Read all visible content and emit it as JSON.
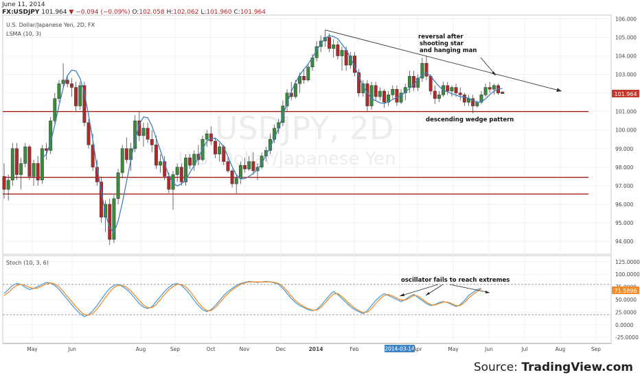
{
  "header": {
    "date": "June 11, 2014",
    "symbol": "FX:USDJPY",
    "last": "101.964",
    "change": "▼ −0.094 (−0.09%)",
    "o_label": "O:",
    "o_val": "102.058",
    "h_label": "H:",
    "h_val": "102.062",
    "l_label": "L:",
    "l_val": "101.960",
    "c_label": "C:",
    "c_val": "101.964"
  },
  "price_pane": {
    "title": "U.S. Dollar/Japanese Yen, 2D, FX",
    "indicator": "LSMA (10, 3)",
    "watermark_symbol": "USDJPY, 2D",
    "watermark_name": "U.S. Dollar/Japanese Yen",
    "last_tag": "101.964",
    "y_min": 93.3,
    "y_max": 106.2,
    "y_ticks": [
      "106.000",
      "105.000",
      "104.000",
      "103.000",
      "102.000",
      "101.000",
      "100.000",
      "99.000",
      "98.000",
      "97.000",
      "96.000",
      "95.000",
      "94.000"
    ],
    "horizontal_levels": [
      101.0,
      97.45,
      96.55
    ],
    "annotations": {
      "reversal": [
        "reversal after",
        "shooting star",
        "and hanging man"
      ],
      "wedge": "descending wedge pattern"
    }
  },
  "stoch_pane": {
    "title": "Stoch (10, 3, 6)",
    "y_min": -37,
    "y_max": 137,
    "y_ticks": [
      "125.0000",
      "100.0000",
      "75.0000",
      "50.0000",
      "25.0000",
      "0.0000",
      "-25.0000"
    ],
    "bands": [
      80,
      20
    ],
    "last_tag": "71.5896",
    "annotation": "oscillator fails to reach extremes",
    "colors": {
      "k": "#4a9fd8",
      "d": "#f28c28"
    }
  },
  "time_axis": {
    "labels": [
      "May",
      "Jun",
      "Jul",
      "Aug",
      "Sep",
      "Oct",
      "Nov",
      "Dec",
      "2014",
      "Feb",
      "2014-03-14",
      "Apr",
      "May",
      "Jun",
      "Jul",
      "Aug",
      "Sep"
    ]
  },
  "source": {
    "prefix": "Source: ",
    "brand": "TradingView.com"
  },
  "chart_data": {
    "type": "candlestick",
    "candle_values": [
      [
        97.5,
        98.2,
        96.3,
        96.8
      ],
      [
        96.8,
        97.6,
        96.2,
        97.3
      ],
      [
        97.3,
        99.3,
        97.0,
        99.0
      ],
      [
        99.0,
        99.3,
        97.3,
        97.6
      ],
      [
        97.6,
        98.5,
        96.8,
        98.2
      ],
      [
        98.2,
        99.3,
        98.0,
        99.1
      ],
      [
        99.1,
        99.2,
        97.3,
        97.5
      ],
      [
        97.5,
        98.4,
        97.0,
        98.2
      ],
      [
        98.2,
        98.6,
        97.0,
        97.3
      ],
      [
        97.3,
        99.2,
        97.1,
        99.0
      ],
      [
        99.0,
        99.3,
        98.4,
        98.9
      ],
      [
        98.9,
        100.7,
        98.7,
        100.5
      ],
      [
        100.5,
        102.0,
        100.3,
        101.7
      ],
      [
        101.7,
        102.7,
        101.5,
        102.5
      ],
      [
        102.5,
        103.6,
        102.3,
        102.7
      ],
      [
        102.7,
        102.9,
        102.3,
        102.5
      ],
      [
        102.5,
        102.8,
        101.8,
        102.3
      ],
      [
        102.3,
        102.6,
        101.0,
        101.3
      ],
      [
        101.3,
        102.6,
        101.1,
        102.4
      ],
      [
        102.4,
        102.6,
        100.2,
        100.4
      ],
      [
        100.4,
        100.6,
        99.0,
        99.2
      ],
      [
        99.2,
        99.8,
        97.8,
        98.0
      ],
      [
        98.0,
        98.4,
        97.0,
        97.2
      ],
      [
        97.2,
        97.5,
        95.0,
        95.3
      ],
      [
        95.3,
        96.2,
        94.5,
        96.0
      ],
      [
        96.0,
        96.3,
        93.8,
        94.1
      ],
      [
        94.1,
        96.5,
        93.9,
        96.3
      ],
      [
        96.3,
        97.9,
        96.0,
        97.7
      ],
      [
        97.7,
        99.2,
        97.4,
        99.0
      ],
      [
        99.0,
        99.6,
        98.2,
        98.4
      ],
      [
        98.4,
        99.3,
        97.8,
        99.0
      ],
      [
        99.0,
        100.8,
        98.8,
        100.5
      ],
      [
        100.5,
        101.0,
        99.4,
        99.7
      ],
      [
        99.7,
        100.4,
        99.1,
        100.1
      ],
      [
        100.1,
        100.4,
        99.3,
        99.5
      ],
      [
        99.5,
        100.0,
        98.8,
        99.2
      ],
      [
        99.2,
        99.7,
        97.9,
        98.1
      ],
      [
        98.1,
        98.7,
        97.7,
        98.3
      ],
      [
        98.3,
        98.6,
        97.3,
        97.5
      ],
      [
        97.5,
        97.7,
        96.6,
        96.8
      ],
      [
        96.8,
        97.8,
        95.7,
        97.6
      ],
      [
        97.6,
        98.2,
        97.2,
        98.0
      ],
      [
        98.0,
        98.2,
        97.0,
        97.2
      ],
      [
        97.2,
        98.7,
        97.0,
        98.5
      ],
      [
        98.5,
        98.7,
        97.9,
        98.1
      ],
      [
        98.1,
        98.9,
        97.8,
        98.7
      ],
      [
        98.7,
        99.2,
        98.1,
        98.4
      ],
      [
        98.4,
        99.7,
        98.3,
        99.5
      ],
      [
        99.5,
        100.0,
        99.1,
        99.8
      ],
      [
        99.8,
        100.2,
        99.2,
        99.4
      ],
      [
        99.4,
        99.6,
        98.5,
        98.7
      ],
      [
        98.7,
        99.3,
        98.3,
        99.1
      ],
      [
        99.1,
        99.2,
        98.1,
        98.3
      ],
      [
        98.3,
        98.6,
        97.7,
        97.8
      ],
      [
        97.8,
        97.9,
        96.9,
        97.1
      ],
      [
        97.1,
        97.6,
        96.6,
        97.4
      ],
      [
        97.4,
        98.3,
        97.1,
        98.1
      ],
      [
        98.1,
        98.5,
        97.7,
        97.9
      ],
      [
        97.9,
        98.6,
        97.8,
        98.3
      ],
      [
        98.3,
        98.8,
        97.6,
        97.8
      ],
      [
        97.8,
        98.2,
        97.3,
        98.0
      ],
      [
        98.0,
        98.8,
        97.9,
        98.6
      ],
      [
        98.6,
        99.1,
        98.3,
        98.9
      ],
      [
        98.9,
        99.8,
        98.7,
        99.5
      ],
      [
        99.5,
        100.3,
        99.3,
        100.1
      ],
      [
        100.1,
        100.6,
        99.8,
        100.4
      ],
      [
        100.4,
        101.6,
        100.2,
        101.3
      ],
      [
        101.3,
        102.2,
        101.0,
        102.0
      ],
      [
        102.0,
        102.6,
        101.6,
        101.8
      ],
      [
        101.8,
        102.7,
        101.7,
        102.5
      ],
      [
        102.5,
        103.1,
        102.0,
        102.9
      ],
      [
        102.9,
        103.3,
        102.5,
        102.7
      ],
      [
        102.7,
        103.6,
        102.6,
        103.4
      ],
      [
        103.4,
        104.1,
        103.2,
        103.9
      ],
      [
        103.9,
        104.8,
        103.7,
        104.5
      ],
      [
        104.5,
        105.1,
        104.2,
        104.8
      ],
      [
        104.8,
        105.4,
        104.5,
        105.0
      ],
      [
        105.0,
        105.2,
        104.2,
        104.4
      ],
      [
        104.4,
        104.9,
        103.9,
        104.6
      ],
      [
        104.6,
        104.8,
        103.8,
        104.0
      ],
      [
        104.0,
        104.5,
        103.2,
        104.3
      ],
      [
        104.3,
        104.5,
        103.2,
        103.5
      ],
      [
        103.5,
        104.2,
        103.3,
        104.0
      ],
      [
        104.0,
        104.2,
        102.9,
        103.1
      ],
      [
        103.1,
        103.3,
        101.8,
        102.0
      ],
      [
        102.0,
        102.7,
        101.8,
        102.5
      ],
      [
        102.5,
        102.7,
        101.0,
        101.3
      ],
      [
        101.3,
        102.6,
        101.1,
        102.4
      ],
      [
        102.4,
        102.6,
        101.6,
        101.8
      ],
      [
        101.8,
        102.3,
        101.6,
        102.1
      ],
      [
        102.1,
        102.2,
        101.2,
        101.5
      ],
      [
        101.5,
        102.1,
        101.3,
        101.9
      ],
      [
        101.9,
        102.4,
        101.7,
        102.2
      ],
      [
        102.2,
        102.4,
        101.3,
        101.5
      ],
      [
        101.5,
        102.2,
        101.4,
        102.0
      ],
      [
        102.0,
        102.5,
        101.6,
        102.3
      ],
      [
        102.3,
        103.2,
        102.0,
        102.9
      ],
      [
        102.9,
        103.2,
        102.1,
        102.3
      ],
      [
        102.3,
        103.0,
        102.1,
        102.8
      ],
      [
        102.8,
        103.9,
        102.6,
        103.6
      ],
      [
        103.6,
        104.0,
        102.7,
        102.9
      ],
      [
        102.9,
        103.0,
        101.9,
        102.1
      ],
      [
        102.1,
        102.4,
        101.4,
        101.7
      ],
      [
        101.7,
        102.1,
        101.5,
        101.9
      ],
      [
        101.9,
        102.6,
        101.8,
        102.4
      ],
      [
        102.4,
        102.6,
        101.9,
        102.1
      ],
      [
        102.1,
        102.4,
        101.8,
        102.3
      ],
      [
        102.3,
        102.5,
        101.8,
        102.0
      ],
      [
        102.0,
        102.3,
        101.6,
        101.9
      ],
      [
        101.9,
        102.0,
        101.3,
        101.5
      ],
      [
        101.5,
        101.9,
        101.3,
        101.7
      ],
      [
        101.7,
        101.9,
        100.9,
        101.3
      ],
      [
        101.3,
        101.6,
        101.2,
        101.5
      ],
      [
        101.5,
        102.1,
        101.4,
        101.9
      ],
      [
        101.9,
        102.5,
        101.8,
        102.3
      ],
      [
        102.3,
        102.6,
        102.0,
        102.2
      ],
      [
        102.2,
        102.5,
        101.9,
        102.4
      ],
      [
        102.4,
        102.5,
        101.9,
        102.0
      ],
      [
        102.058,
        102.062,
        101.96,
        101.964
      ]
    ],
    "lsma_label": "LSMA (10, 3)",
    "trendline": [
      [
        76,
        105.4
      ],
      [
        132,
        102.1
      ]
    ],
    "stoch_k": [
      62,
      70,
      78,
      82,
      80,
      74,
      70,
      72,
      76,
      80,
      84,
      83,
      78,
      70,
      60,
      50,
      40,
      30,
      22,
      16,
      20,
      28,
      38,
      50,
      62,
      72,
      78,
      80,
      76,
      70,
      62,
      52,
      42,
      35,
      32,
      36,
      46,
      56,
      66,
      74,
      80,
      82,
      78,
      70,
      60,
      48,
      38,
      30,
      26,
      30,
      38,
      48,
      58,
      66,
      72,
      78,
      82,
      84,
      86,
      85,
      84,
      85,
      86,
      85,
      83,
      80,
      72,
      62,
      52,
      44,
      38,
      34,
      30,
      28,
      30,
      38,
      48,
      58,
      66,
      60,
      52,
      44,
      36,
      30,
      26,
      22,
      28,
      38,
      48,
      56,
      62,
      58,
      54,
      50,
      46,
      50,
      56,
      60,
      54,
      48,
      42,
      38,
      40,
      44,
      46,
      44,
      40,
      36,
      40,
      48,
      58,
      64,
      70,
      72
    ],
    "stoch_d": [
      58,
      64,
      72,
      78,
      80,
      78,
      74,
      72,
      73,
      77,
      81,
      83,
      81,
      75,
      66,
      56,
      46,
      36,
      27,
      20,
      19,
      23,
      31,
      42,
      54,
      65,
      74,
      78,
      78,
      74,
      67,
      58,
      48,
      39,
      34,
      34,
      40,
      50,
      60,
      69,
      76,
      80,
      80,
      75,
      67,
      55,
      44,
      34,
      28,
      28,
      34,
      43,
      53,
      62,
      69,
      75,
      80,
      83,
      85,
      85,
      85,
      85,
      85,
      85,
      84,
      82,
      76,
      67,
      57,
      48,
      41,
      36,
      32,
      29,
      29,
      34,
      43,
      53,
      61,
      62,
      56,
      48,
      40,
      33,
      28,
      24,
      25,
      32,
      42,
      51,
      58,
      60,
      57,
      53,
      49,
      49,
      53,
      58,
      57,
      51,
      45,
      40,
      39,
      42,
      45,
      45,
      42,
      38,
      38,
      44,
      53,
      60,
      66,
      71.59
    ]
  }
}
